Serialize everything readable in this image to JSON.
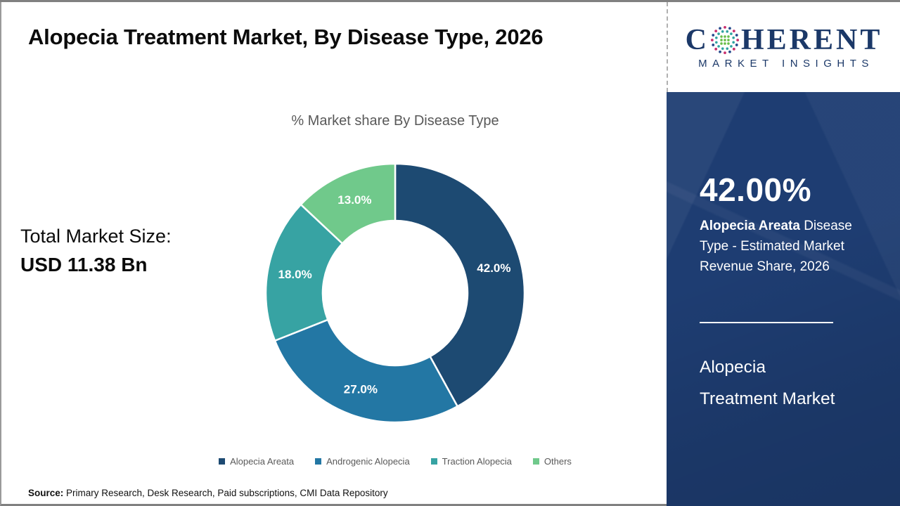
{
  "page": {
    "title": "Alopecia Treatment Market, By Disease Type, 2026",
    "source_label": "Source:",
    "source_text": " Primary Research, Desk Research, Paid subscriptions, CMI Data Repository"
  },
  "total_market": {
    "label": "Total Market Size:",
    "value": "USD 11.38 Bn"
  },
  "logo": {
    "part1": "C",
    "part2": "HERENT",
    "subtitle": "MARKET INSIGHTS",
    "text_color": "#1b3868"
  },
  "sidebar": {
    "stat_value": "42.00%",
    "stat_bold": "Alopecia Areata",
    "stat_desc_rest": " Disease Type - Estimated Market Revenue Share, 2026",
    "market_name_line1": "Alopecia",
    "market_name_line2": "Treatment Market",
    "background_color": "#1e3d72"
  },
  "chart_data": {
    "type": "pie",
    "subtype": "donut",
    "title": "% Market share By Disease Type",
    "inner_radius_ratio": 0.56,
    "start_angle_deg": 0,
    "direction": "clockwise",
    "legend_position": "bottom",
    "series": [
      {
        "name": "Alopecia Areata",
        "value": 42.0,
        "color": "#1d4a72"
      },
      {
        "name": "Androgenic Alopecia",
        "value": 27.0,
        "color": "#2377a4"
      },
      {
        "name": "Traction Alopecia",
        "value": 18.0,
        "color": "#37a3a3"
      },
      {
        "name": "Others",
        "value": 13.0,
        "color": "#70c98b"
      }
    ],
    "data_labels": [
      "42.0%",
      "27.0%",
      "18.0%",
      "13.0%"
    ]
  }
}
